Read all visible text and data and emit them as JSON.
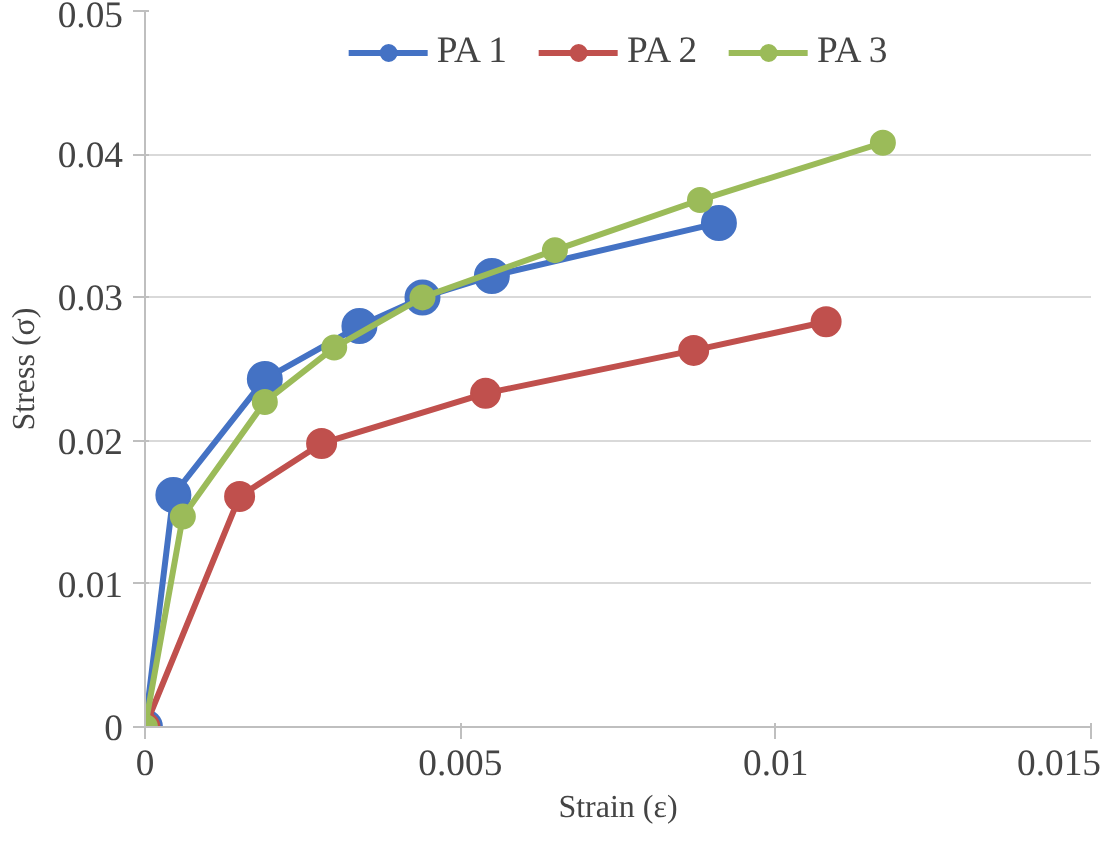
{
  "chart_data": {
    "type": "line",
    "xlabel": "Strain (ε)",
    "ylabel": "Stress (σ)",
    "xlim": [
      0,
      0.015
    ],
    "xticks": [
      0,
      0.005,
      0.01,
      0.015
    ],
    "ylim": [
      0,
      0.05
    ],
    "yticks": [
      0,
      0.01,
      0.02,
      0.03,
      0.04,
      0.05
    ],
    "grid": "y",
    "legend": "top",
    "marker": "circle",
    "line_style": "solid",
    "series": [
      {
        "name": "PA 1",
        "color": "#4472c4",
        "x": [
          0,
          0.00045,
          0.0019,
          0.0034,
          0.0044,
          0.0055,
          0.0091
        ],
        "values": [
          0,
          0.0162,
          0.0243,
          0.028,
          0.03,
          0.0315,
          0.0352
        ]
      },
      {
        "name": "PA 2",
        "color": "#c0504d",
        "x": [
          0,
          0.0015,
          0.0028,
          0.0054,
          0.0087,
          0.0108
        ],
        "values": [
          0,
          0.0161,
          0.0198,
          0.0233,
          0.0263,
          0.0283
        ]
      },
      {
        "name": "PA 3",
        "color": "#9bbb59",
        "x": [
          0,
          0.0006,
          0.0019,
          0.003,
          0.0044,
          0.0065,
          0.0088,
          0.0117
        ],
        "values": [
          0,
          0.0147,
          0.0227,
          0.0265,
          0.03,
          0.0333,
          0.0368,
          0.0408
        ]
      }
    ]
  }
}
